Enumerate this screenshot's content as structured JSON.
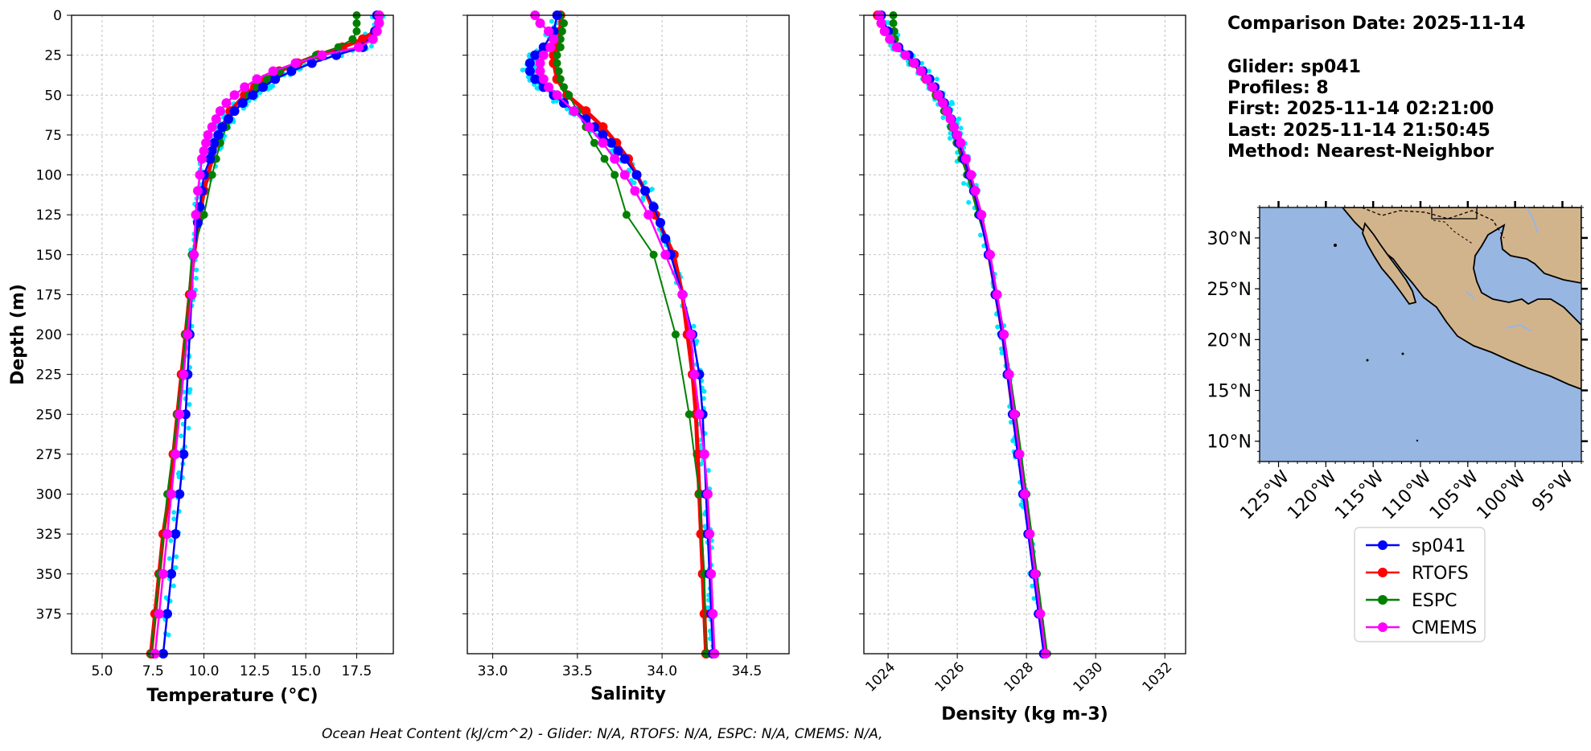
{
  "colors": {
    "glider": "#0000ff",
    "glider_profiles": "#00e5ff",
    "rtofs": "#ff0000",
    "espc": "#008000",
    "cmems": "#ff00ff",
    "ocean": "#97b6e1",
    "land": "#d2b48c",
    "grid": "#b0b0b0"
  },
  "chart_data": [
    {
      "type": "line",
      "id": "temperature",
      "xlabel": "Temperature (°C)",
      "ylabel": "Depth (m)",
      "xlim": [
        3.5,
        19.3
      ],
      "ylim": [
        400,
        0
      ],
      "x_ticks": [
        "5.0",
        "7.5",
        "10.0",
        "12.5",
        "15.0",
        "17.5"
      ],
      "y_ticks": [
        "0",
        "25",
        "50",
        "75",
        "100",
        "125",
        "150",
        "175",
        "200",
        "225",
        "250",
        "275",
        "300",
        "325",
        "350",
        "375"
      ],
      "grid": true,
      "series": [
        {
          "name": "sp041",
          "color": "#0000ff",
          "depth": [
            0,
            10,
            20,
            25,
            30,
            35,
            40,
            45,
            50,
            55,
            60,
            65,
            70,
            75,
            80,
            85,
            90,
            100,
            110,
            120,
            130,
            150,
            175,
            200,
            225,
            250,
            275,
            300,
            325,
            350,
            375,
            400
          ],
          "values": [
            18.5,
            18.4,
            17.8,
            16.5,
            15.3,
            14.3,
            13.5,
            12.9,
            12.4,
            11.9,
            11.5,
            11.2,
            10.9,
            10.7,
            10.5,
            10.4,
            10.3,
            10.0,
            9.9,
            9.8,
            9.7,
            9.5,
            9.4,
            9.3,
            9.2,
            9.1,
            9.0,
            8.8,
            8.6,
            8.4,
            8.2,
            8.0
          ]
        },
        {
          "name": "RTOFS",
          "color": "#ff0000",
          "depth": [
            0,
            5,
            10,
            15,
            20,
            25,
            30,
            35,
            40,
            45,
            50,
            60,
            70,
            80,
            90,
            100,
            110,
            125,
            150,
            175,
            200,
            225,
            250,
            275,
            300,
            325,
            350,
            375,
            400
          ],
          "values": [
            18.6,
            18.6,
            18.4,
            17.8,
            16.8,
            15.6,
            14.6,
            13.7,
            13.0,
            12.5,
            12.0,
            11.3,
            10.9,
            10.6,
            10.4,
            10.2,
            10.0,
            9.8,
            9.5,
            9.3,
            9.1,
            8.9,
            8.7,
            8.5,
            8.3,
            8.0,
            7.8,
            7.6,
            7.4
          ]
        },
        {
          "name": "ESPC",
          "color": "#008000",
          "depth": [
            0,
            5,
            10,
            15,
            20,
            25,
            30,
            35,
            40,
            45,
            50,
            60,
            70,
            80,
            90,
            100,
            125,
            150,
            200,
            250,
            300,
            350,
            400
          ],
          "values": [
            17.5,
            17.5,
            17.5,
            17.3,
            16.6,
            15.5,
            14.5,
            13.7,
            13.1,
            12.6,
            12.2,
            11.5,
            11.1,
            10.8,
            10.6,
            10.4,
            10.0,
            9.4,
            9.1,
            8.7,
            8.2,
            7.8,
            7.4
          ]
        },
        {
          "name": "CMEMS",
          "color": "#ff00ff",
          "depth": [
            0,
            5,
            10,
            15,
            20,
            25,
            30,
            35,
            40,
            45,
            50,
            55,
            60,
            65,
            70,
            75,
            80,
            85,
            90,
            100,
            110,
            125,
            150,
            175,
            200,
            225,
            250,
            275,
            300,
            325,
            350,
            375,
            400
          ],
          "values": [
            18.6,
            18.6,
            18.5,
            18.3,
            17.6,
            15.8,
            14.5,
            13.4,
            12.6,
            12.0,
            11.5,
            11.1,
            10.8,
            10.6,
            10.4,
            10.2,
            10.1,
            10.0,
            9.9,
            9.8,
            9.7,
            9.6,
            9.5,
            9.4,
            9.2,
            9.0,
            8.8,
            8.6,
            8.4,
            8.2,
            8.0,
            7.8,
            7.6
          ]
        }
      ]
    },
    {
      "type": "line",
      "id": "salinity",
      "xlabel": "Salinity",
      "ylabel": "",
      "xlim": [
        32.85,
        34.75
      ],
      "ylim": [
        400,
        0
      ],
      "x_ticks": [
        "33.0",
        "33.5",
        "34.0",
        "34.5"
      ],
      "grid": true,
      "series": [
        {
          "name": "sp041",
          "color": "#0000ff",
          "depth": [
            0,
            10,
            20,
            25,
            30,
            35,
            40,
            45,
            50,
            55,
            60,
            65,
            70,
            75,
            80,
            85,
            90,
            100,
            110,
            120,
            130,
            140,
            150,
            175,
            200,
            225,
            250,
            275,
            300,
            325,
            350,
            375,
            400
          ],
          "values": [
            33.38,
            33.36,
            33.3,
            33.25,
            33.22,
            33.22,
            33.25,
            33.3,
            33.36,
            33.42,
            33.48,
            33.55,
            33.6,
            33.65,
            33.7,
            33.74,
            33.78,
            33.85,
            33.9,
            33.95,
            33.99,
            34.02,
            34.05,
            34.12,
            34.18,
            34.22,
            34.24,
            34.25,
            34.26,
            34.27,
            34.28,
            34.29,
            34.3
          ]
        },
        {
          "name": "RTOFS",
          "color": "#ff0000",
          "depth": [
            0,
            10,
            20,
            25,
            30,
            40,
            50,
            60,
            70,
            80,
            90,
            100,
            110,
            125,
            150,
            175,
            200,
            225,
            250,
            275,
            300,
            325,
            350,
            375,
            400
          ],
          "values": [
            33.4,
            33.4,
            33.38,
            33.36,
            33.36,
            33.38,
            33.44,
            33.55,
            33.65,
            33.73,
            33.8,
            33.85,
            33.9,
            33.96,
            34.07,
            34.12,
            34.15,
            34.18,
            34.2,
            34.21,
            34.22,
            34.23,
            34.24,
            34.25,
            34.26
          ]
        },
        {
          "name": "ESPC",
          "color": "#008000",
          "depth": [
            0,
            5,
            10,
            15,
            20,
            25,
            30,
            35,
            40,
            45,
            50,
            60,
            70,
            80,
            90,
            100,
            125,
            150,
            200,
            250,
            300,
            350,
            400
          ],
          "values": [
            33.4,
            33.42,
            33.41,
            33.4,
            33.4,
            33.38,
            33.38,
            33.39,
            33.4,
            33.42,
            33.45,
            33.5,
            33.55,
            33.6,
            33.66,
            33.72,
            33.79,
            33.95,
            34.08,
            34.16,
            34.22,
            34.25,
            34.26
          ]
        },
        {
          "name": "CMEMS",
          "color": "#ff00ff",
          "depth": [
            0,
            5,
            10,
            15,
            20,
            25,
            30,
            35,
            40,
            45,
            50,
            60,
            70,
            80,
            90,
            100,
            110,
            125,
            150,
            175,
            200,
            225,
            250,
            275,
            300,
            325,
            350,
            375,
            400
          ],
          "values": [
            33.25,
            33.28,
            33.33,
            33.36,
            33.34,
            33.3,
            33.28,
            33.28,
            33.3,
            33.33,
            33.38,
            33.48,
            33.57,
            33.65,
            33.72,
            33.78,
            33.84,
            33.92,
            34.02,
            34.12,
            34.17,
            34.19,
            34.22,
            34.25,
            34.27,
            34.28,
            34.29,
            34.3,
            34.31
          ]
        }
      ]
    },
    {
      "type": "line",
      "id": "density",
      "xlabel": "Density (kg m-3)",
      "ylabel": "",
      "xlim": [
        1023.3,
        1032.6
      ],
      "ylim": [
        400,
        0
      ],
      "x_ticks": [
        "1024",
        "1026",
        "1028",
        "1030",
        "1032"
      ],
      "grid": true,
      "series": [
        {
          "name": "sp041",
          "color": "#0000ff",
          "depth": [
            0,
            10,
            20,
            25,
            30,
            35,
            40,
            45,
            50,
            55,
            60,
            65,
            70,
            75,
            80,
            90,
            100,
            110,
            125,
            150,
            175,
            200,
            225,
            250,
            275,
            300,
            325,
            350,
            375,
            400
          ],
          "values": [
            1023.8,
            1024.0,
            1024.3,
            1024.6,
            1024.8,
            1025.0,
            1025.2,
            1025.35,
            1025.5,
            1025.62,
            1025.72,
            1025.82,
            1025.9,
            1025.98,
            1026.05,
            1026.2,
            1026.35,
            1026.48,
            1026.65,
            1026.9,
            1027.1,
            1027.3,
            1027.45,
            1027.6,
            1027.75,
            1027.9,
            1028.05,
            1028.2,
            1028.35,
            1028.5
          ]
        },
        {
          "name": "RTOFS",
          "color": "#ff0000",
          "depth": [
            0,
            10,
            20,
            30,
            40,
            50,
            60,
            70,
            80,
            90,
            100,
            125,
            150,
            175,
            200,
            250,
            300,
            350,
            400
          ],
          "values": [
            1023.7,
            1023.9,
            1024.3,
            1024.75,
            1025.1,
            1025.4,
            1025.68,
            1025.88,
            1026.05,
            1026.2,
            1026.35,
            1026.68,
            1026.92,
            1027.12,
            1027.32,
            1027.62,
            1027.95,
            1028.25,
            1028.55
          ]
        },
        {
          "name": "ESPC",
          "color": "#008000",
          "depth": [
            0,
            5,
            10,
            15,
            20,
            30,
            40,
            50,
            60,
            70,
            80,
            90,
            100,
            125,
            150,
            200,
            250,
            300,
            350,
            400
          ],
          "values": [
            1024.15,
            1024.15,
            1024.18,
            1024.2,
            1024.3,
            1024.7,
            1025.1,
            1025.38,
            1025.62,
            1025.82,
            1025.98,
            1026.12,
            1026.28,
            1026.6,
            1026.95,
            1027.35,
            1027.7,
            1028.0,
            1028.3,
            1028.6
          ]
        },
        {
          "name": "CMEMS",
          "color": "#ff00ff",
          "depth": [
            0,
            5,
            10,
            15,
            20,
            25,
            30,
            35,
            40,
            45,
            50,
            55,
            60,
            65,
            70,
            75,
            80,
            90,
            100,
            110,
            125,
            150,
            175,
            200,
            225,
            250,
            275,
            300,
            325,
            350,
            375,
            400
          ],
          "values": [
            1023.75,
            1023.8,
            1023.9,
            1024.05,
            1024.25,
            1024.5,
            1024.75,
            1024.95,
            1025.12,
            1025.28,
            1025.45,
            1025.58,
            1025.7,
            1025.8,
            1025.9,
            1026.0,
            1026.1,
            1026.25,
            1026.4,
            1026.52,
            1026.7,
            1026.95,
            1027.15,
            1027.35,
            1027.5,
            1027.65,
            1027.8,
            1027.95,
            1028.1,
            1028.25,
            1028.4,
            1028.55
          ]
        }
      ]
    }
  ],
  "info": {
    "comparison_date": "Comparison Date: 2025-11-14",
    "glider": "Glider: sp041",
    "profiles": "Profiles: 8",
    "first": "First: 2025-11-14 02:21:00",
    "last": "Last: 2025-11-14 21:50:45",
    "method": "Method: Nearest-Neighbor"
  },
  "map": {
    "lat_ticks": [
      "30°N",
      "25°N",
      "20°N",
      "15°N",
      "10°N"
    ],
    "lon_ticks": [
      "125°W",
      "120°W",
      "115°W",
      "110°W",
      "105°W",
      "100°W",
      "95°W"
    ],
    "lon_range": [
      -127,
      -93
    ],
    "lat_range": [
      8,
      33
    ]
  },
  "legend": {
    "items": [
      {
        "label": "sp041",
        "color": "#0000ff"
      },
      {
        "label": "RTOFS",
        "color": "#ff0000"
      },
      {
        "label": "ESPC",
        "color": "#008000"
      },
      {
        "label": "CMEMS",
        "color": "#ff00ff"
      }
    ]
  },
  "footer": {
    "ohc": "Ocean Heat Content (kJ/cm^2) - Glider: N/A,  RTOFS: N/A,  ESPC: N/A,  CMEMS: N/A,"
  }
}
